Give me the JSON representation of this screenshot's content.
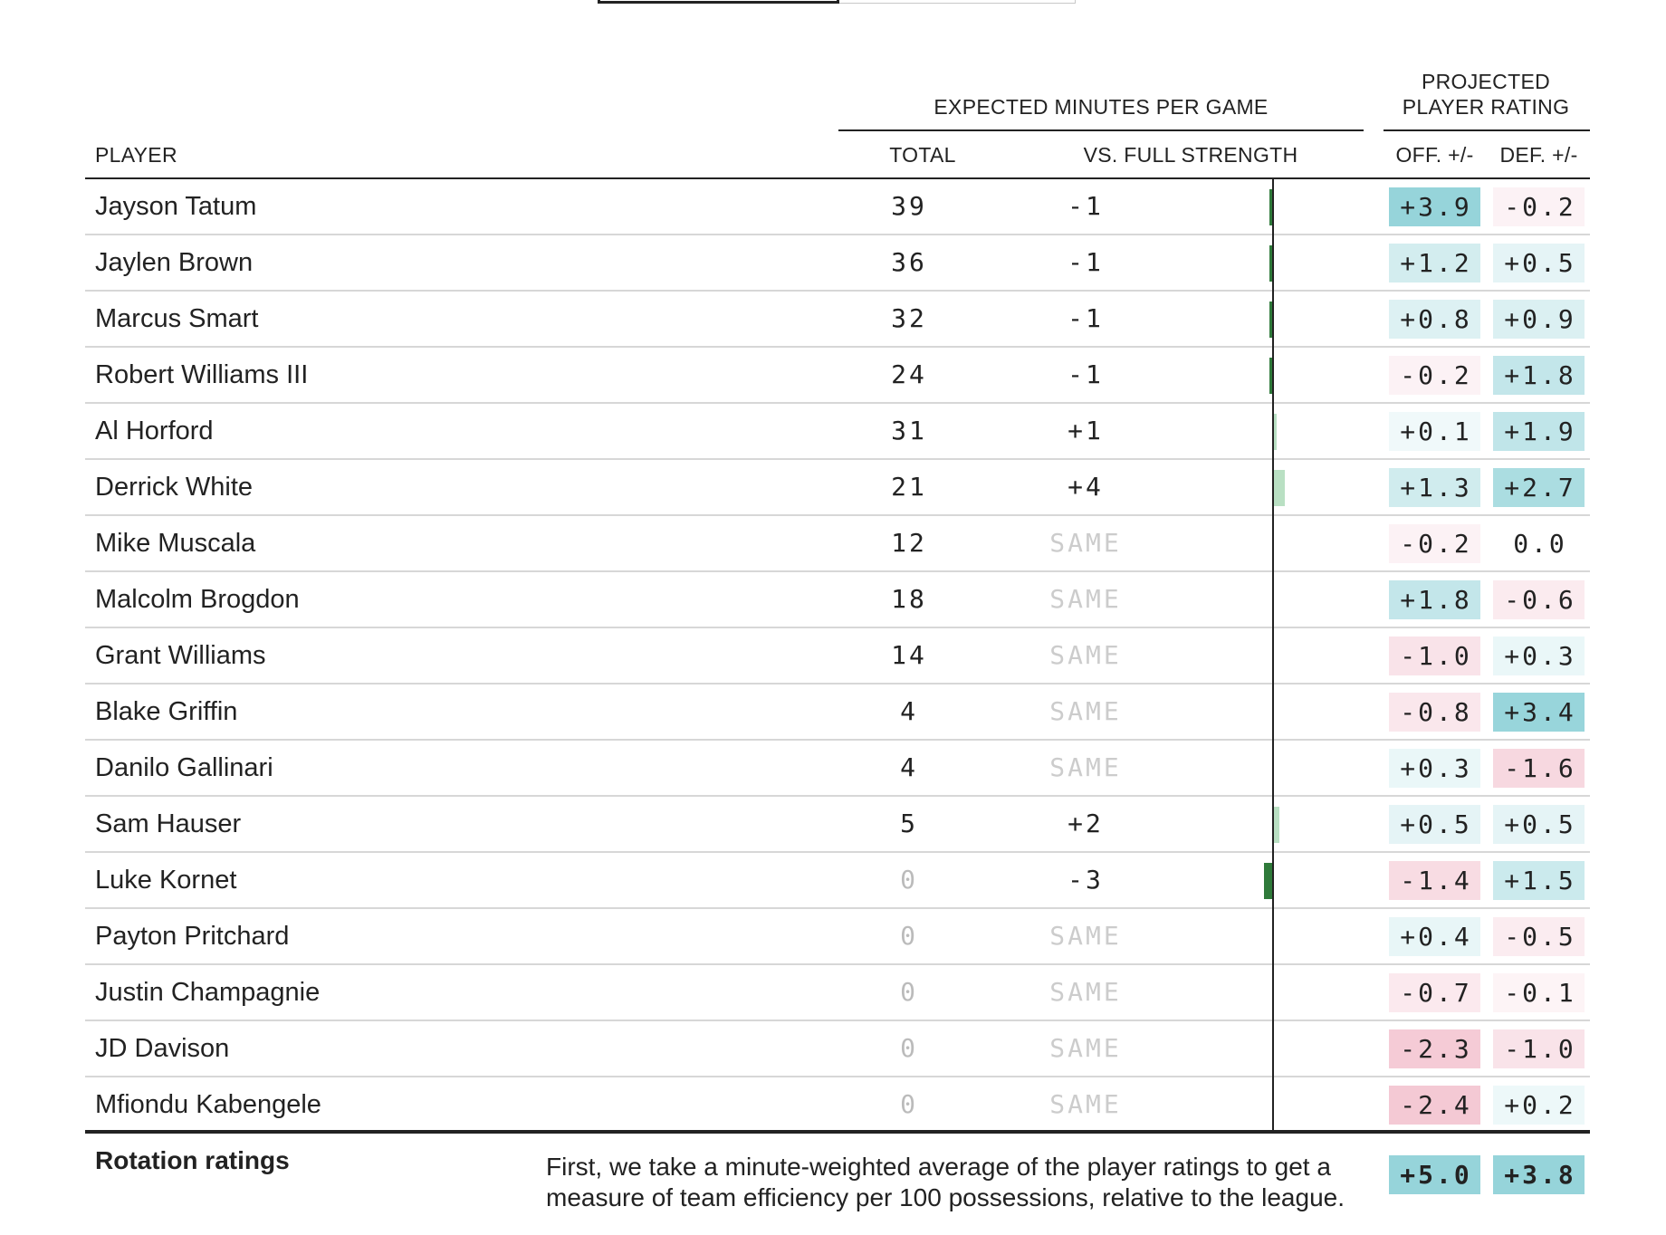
{
  "header": {
    "group_minutes": "EXPECTED MINUTES PER GAME",
    "group_rating_line1": "PROJECTED",
    "group_rating_line2": "PLAYER RATING",
    "col_player": "PLAYER",
    "col_total": "TOTAL",
    "col_vs": "VS. FULL STRENGTH",
    "col_off": "OFF. +/-",
    "col_def": "DEF. +/-"
  },
  "players": [
    {
      "name": "Jayson Tatum",
      "total": "39",
      "vs": "-1",
      "vs_value": -1,
      "off": "+3.9",
      "off_value": 3.9,
      "def": "-0.2",
      "def_value": -0.2
    },
    {
      "name": "Jaylen Brown",
      "total": "36",
      "vs": "-1",
      "vs_value": -1,
      "off": "+1.2",
      "off_value": 1.2,
      "def": "+0.5",
      "def_value": 0.5
    },
    {
      "name": "Marcus Smart",
      "total": "32",
      "vs": "-1",
      "vs_value": -1,
      "off": "+0.8",
      "off_value": 0.8,
      "def": "+0.9",
      "def_value": 0.9
    },
    {
      "name": "Robert Williams III",
      "total": "24",
      "vs": "-1",
      "vs_value": -1,
      "off": "-0.2",
      "off_value": -0.2,
      "def": "+1.8",
      "def_value": 1.8
    },
    {
      "name": "Al Horford",
      "total": "31",
      "vs": "+1",
      "vs_value": 1,
      "off": "+0.1",
      "off_value": 0.1,
      "def": "+1.9",
      "def_value": 1.9
    },
    {
      "name": "Derrick White",
      "total": "21",
      "vs": "+4",
      "vs_value": 4,
      "off": "+1.3",
      "off_value": 1.3,
      "def": "+2.7",
      "def_value": 2.7
    },
    {
      "name": "Mike Muscala",
      "total": "12",
      "vs": "SAME",
      "vs_value": 0,
      "off": "-0.2",
      "off_value": -0.2,
      "def": "0.0",
      "def_value": 0.0
    },
    {
      "name": "Malcolm Brogdon",
      "total": "18",
      "vs": "SAME",
      "vs_value": 0,
      "off": "+1.8",
      "off_value": 1.8,
      "def": "-0.6",
      "def_value": -0.6
    },
    {
      "name": "Grant Williams",
      "total": "14",
      "vs": "SAME",
      "vs_value": 0,
      "off": "-1.0",
      "off_value": -1.0,
      "def": "+0.3",
      "def_value": 0.3
    },
    {
      "name": "Blake Griffin",
      "total": "4",
      "vs": "SAME",
      "vs_value": 0,
      "off": "-0.8",
      "off_value": -0.8,
      "def": "+3.4",
      "def_value": 3.4
    },
    {
      "name": "Danilo Gallinari",
      "total": "4",
      "vs": "SAME",
      "vs_value": 0,
      "off": "+0.3",
      "off_value": 0.3,
      "def": "-1.6",
      "def_value": -1.6
    },
    {
      "name": "Sam Hauser",
      "total": "5",
      "vs": "+2",
      "vs_value": 2,
      "off": "+0.5",
      "off_value": 0.5,
      "def": "+0.5",
      "def_value": 0.5
    },
    {
      "name": "Luke Kornet",
      "total": "0",
      "vs": "-3",
      "vs_value": -3,
      "off": "-1.4",
      "off_value": -1.4,
      "def": "+1.5",
      "def_value": 1.5
    },
    {
      "name": "Payton Pritchard",
      "total": "0",
      "vs": "SAME",
      "vs_value": 0,
      "off": "+0.4",
      "off_value": 0.4,
      "def": "-0.5",
      "def_value": -0.5
    },
    {
      "name": "Justin Champagnie",
      "total": "0",
      "vs": "SAME",
      "vs_value": 0,
      "off": "-0.7",
      "off_value": -0.7,
      "def": "-0.1",
      "def_value": -0.1
    },
    {
      "name": "JD Davison",
      "total": "0",
      "vs": "SAME",
      "vs_value": 0,
      "off": "-2.3",
      "off_value": -2.3,
      "def": "-1.0",
      "def_value": -1.0
    },
    {
      "name": "Mfiondu Kabengele",
      "total": "0",
      "vs": "SAME",
      "vs_value": 0,
      "off": "-2.4",
      "off_value": -2.4,
      "def": "+0.2",
      "def_value": 0.2
    }
  ],
  "rotation": {
    "label": "Rotation ratings",
    "description": "First, we take a minute-weighted average of the player ratings to get a measure of team efficiency per 100 possessions, relative to the league.",
    "off": "+5.0",
    "off_value": 5.0,
    "def": "+3.8",
    "def_value": 3.8
  },
  "colors": {
    "positive_rating": "#a9dbe0",
    "negative_rating": "#f3c4cf",
    "minus_bar": "#2f7a3a",
    "plus_bar": "#b9e0c3"
  }
}
